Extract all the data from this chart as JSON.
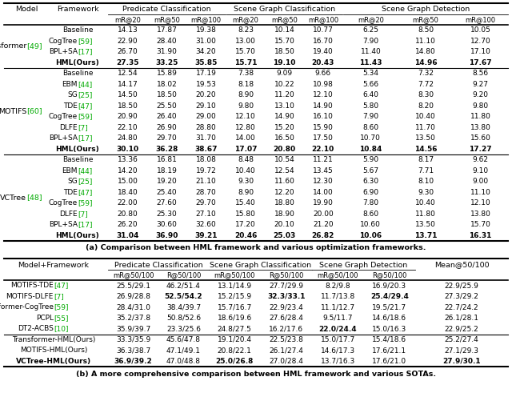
{
  "table_a": {
    "title_part1": "(a) ",
    "title_part2": "Comparison between HML framework and various optimization frameworks.",
    "groups": [
      {
        "model_name": "Transformer",
        "model_ref": "[49]",
        "rows": [
          {
            "fw": "Baseline",
            "fw_ref": null,
            "bold": false,
            "vals": [
              "14.13",
              "17.87",
              "19.38",
              "8.23",
              "10.14",
              "10.77",
              "6.25",
              "8.50",
              "10.05"
            ]
          },
          {
            "fw": "CogTree",
            "fw_ref": "[59]",
            "bold": false,
            "vals": [
              "22.90",
              "28.40",
              "31.00",
              "13.00",
              "15.70",
              "16.70",
              "7.90",
              "11.10",
              "12.70"
            ]
          },
          {
            "fw": "BPL+SA",
            "fw_ref": "[17]",
            "bold": false,
            "vals": [
              "26.70",
              "31.90",
              "34.20",
              "15.70",
              "18.50",
              "19.40",
              "11.40",
              "14.80",
              "17.10"
            ]
          },
          {
            "fw": "HML(Ours)",
            "fw_ref": null,
            "bold": true,
            "vals": [
              "27.35",
              "33.25",
              "35.85",
              "15.71",
              "19.10",
              "20.43",
              "11.43",
              "14.96",
              "17.67"
            ]
          }
        ]
      },
      {
        "model_name": "MOTIFS",
        "model_ref": "[60]",
        "rows": [
          {
            "fw": "Baseline",
            "fw_ref": null,
            "bold": false,
            "vals": [
              "12.54",
              "15.89",
              "17.19",
              "7.38",
              "9.09",
              "9.66",
              "5.34",
              "7.32",
              "8.56"
            ]
          },
          {
            "fw": "EBM",
            "fw_ref": "[44]",
            "bold": false,
            "vals": [
              "14.17",
              "18.02",
              "19.53",
              "8.18",
              "10.22",
              "10.98",
              "5.66",
              "7.72",
              "9.27"
            ]
          },
          {
            "fw": "SG",
            "fw_ref": "[25]",
            "bold": false,
            "vals": [
              "14.50",
              "18.50",
              "20.20",
              "8.90",
              "11.20",
              "12.10",
              "6.40",
              "8.30",
              "9.20"
            ]
          },
          {
            "fw": "TDE",
            "fw_ref": "[47]",
            "bold": false,
            "vals": [
              "18.50",
              "25.50",
              "29.10",
              "9.80",
              "13.10",
              "14.90",
              "5.80",
              "8.20",
              "9.80"
            ]
          },
          {
            "fw": "CogTree",
            "fw_ref": "[59]",
            "bold": false,
            "vals": [
              "20.90",
              "26.40",
              "29.00",
              "12.10",
              "14.90",
              "16.10",
              "7.90",
              "10.40",
              "11.80"
            ]
          },
          {
            "fw": "DLFE",
            "fw_ref": "[7]",
            "bold": false,
            "vals": [
              "22.10",
              "26.90",
              "28.80",
              "12.80",
              "15.20",
              "15.90",
              "8.60",
              "11.70",
              "13.80"
            ]
          },
          {
            "fw": "BPL+SA",
            "fw_ref": "[17]",
            "bold": false,
            "vals": [
              "24.80",
              "29.70",
              "31.70",
              "14.00",
              "16.50",
              "17.50",
              "10.70",
              "13.50",
              "15.60"
            ]
          },
          {
            "fw": "HML(Ours)",
            "fw_ref": null,
            "bold": true,
            "vals": [
              "30.10",
              "36.28",
              "38.67",
              "17.07",
              "20.80",
              "22.10",
              "10.84",
              "14.56",
              "17.27"
            ]
          }
        ]
      },
      {
        "model_name": "VCTree",
        "model_ref": "[48]",
        "rows": [
          {
            "fw": "Baseline",
            "fw_ref": null,
            "bold": false,
            "vals": [
              "13.36",
              "16.81",
              "18.08",
              "8.48",
              "10.54",
              "11.21",
              "5.90",
              "8.17",
              "9.62"
            ]
          },
          {
            "fw": "EBM",
            "fw_ref": "[44]",
            "bold": false,
            "vals": [
              "14.20",
              "18.19",
              "19.72",
              "10.40",
              "12.54",
              "13.45",
              "5.67",
              "7.71",
              "9.10"
            ]
          },
          {
            "fw": "SG",
            "fw_ref": "[25]",
            "bold": false,
            "vals": [
              "15.00",
              "19.20",
              "21.10",
              "9.30",
              "11.60",
              "12.30",
              "6.30",
              "8.10",
              "9.00"
            ]
          },
          {
            "fw": "TDE",
            "fw_ref": "[47]",
            "bold": false,
            "vals": [
              "18.40",
              "25.40",
              "28.70",
              "8.90",
              "12.20",
              "14.00",
              "6.90",
              "9.30",
              "11.10"
            ]
          },
          {
            "fw": "CogTree",
            "fw_ref": "[59]",
            "bold": false,
            "vals": [
              "22.00",
              "27.60",
              "29.70",
              "15.40",
              "18.80",
              "19.90",
              "7.80",
              "10.40",
              "12.10"
            ]
          },
          {
            "fw": "DLFE",
            "fw_ref": "[7]",
            "bold": false,
            "vals": [
              "20.80",
              "25.30",
              "27.10",
              "15.80",
              "18.90",
              "20.00",
              "8.60",
              "11.80",
              "13.80"
            ]
          },
          {
            "fw": "BPL+SA",
            "fw_ref": "[17]",
            "bold": false,
            "vals": [
              "26.20",
              "30.60",
              "32.60",
              "17.20",
              "20.10",
              "21.20",
              "10.60",
              "13.50",
              "15.70"
            ]
          },
          {
            "fw": "HML(Ours)",
            "fw_ref": null,
            "bold": true,
            "vals": [
              "31.04",
              "36.90",
              "39.21",
              "20.46",
              "25.03",
              "26.82",
              "10.06",
              "13.71",
              "16.31"
            ]
          }
        ]
      }
    ]
  },
  "table_b": {
    "title_part1": "(b) ",
    "title_part2": "A more comprehensive comparison between HML framework and various SOTAs.",
    "sota_rows": [
      {
        "name": "MOTIFS-TDE",
        "ref": "[47]",
        "bold_name": false,
        "vals": [
          "25.5/29.1",
          "46.2/51.4",
          "13.1/14.9",
          "27.7/29.9",
          "8.2/9.8",
          "16.9/20.3",
          "22.9/25.9"
        ],
        "bv": [
          false,
          false,
          false,
          false,
          false,
          false,
          false
        ]
      },
      {
        "name": "MOTIFS-DLFE",
        "ref": "[7]",
        "bold_name": false,
        "vals": [
          "26.9/28.8",
          "52.5/54.2",
          "15.2/15.9",
          "32.3/33.1",
          "11.7/13.8",
          "25.4/29.4",
          "27.3/29.2"
        ],
        "bv": [
          false,
          true,
          false,
          true,
          false,
          true,
          false
        ]
      },
      {
        "name": "Transformer-CogTree",
        "ref": "[59]",
        "bold_name": false,
        "vals": [
          "28.4/31.0",
          "38.4/39.7",
          "15.7/16.7",
          "22.9/23.4",
          "11.1/12.7",
          "19.5/21.7",
          "22.7/24.2"
        ],
        "bv": [
          false,
          false,
          false,
          false,
          false,
          false,
          false
        ]
      },
      {
        "name": "PCPL",
        "ref": "[55]",
        "bold_name": false,
        "vals": [
          "35.2/37.8",
          "50.8/52.6",
          "18.6/19.6",
          "27.6/28.4",
          "9.5/11.7",
          "14.6/18.6",
          "26.1/28.1"
        ],
        "bv": [
          false,
          false,
          false,
          false,
          false,
          false,
          false
        ]
      },
      {
        "name": "DT2-ACBS",
        "ref": "[10]",
        "bold_name": false,
        "vals": [
          "35.9/39.7",
          "23.3/25.6",
          "24.8/27.5",
          "16.2/17.6",
          "22.0/24.4",
          "15.0/16.3",
          "22.9/25.2"
        ],
        "bv": [
          false,
          false,
          false,
          false,
          true,
          false,
          false
        ]
      }
    ],
    "ours_rows": [
      {
        "name": "Transformer-HML(Ours)",
        "ref": null,
        "bold_name": false,
        "vals": [
          "33.3/35.9",
          "45.6/47.8",
          "19.1/20.4",
          "22.5/23.8",
          "15.0/17.7",
          "15.4/18.6",
          "25.2/27.4"
        ],
        "bv": [
          false,
          false,
          false,
          false,
          false,
          false,
          false
        ]
      },
      {
        "name": "MOTIFS-HML(Ours)",
        "ref": null,
        "bold_name": false,
        "vals": [
          "36.3/38.7",
          "47.1/49.1",
          "20.8/22.1",
          "26.1/27.4",
          "14.6/17.3",
          "17.6/21.1",
          "27.1/29.3"
        ],
        "bv": [
          false,
          false,
          false,
          false,
          false,
          false,
          false
        ]
      },
      {
        "name": "VCTree-HML(Ours)",
        "ref": null,
        "bold_name": true,
        "vals": [
          "36.9/39.2",
          "47.0/48.8",
          "25.0/26.8",
          "27.0/28.4",
          "13.7/16.3",
          "17.6/21.0",
          "27.9/30.1"
        ],
        "bv": [
          true,
          false,
          true,
          false,
          false,
          false,
          true
        ]
      }
    ]
  },
  "green": "#00aa00",
  "black": "#000000",
  "white": "#ffffff"
}
